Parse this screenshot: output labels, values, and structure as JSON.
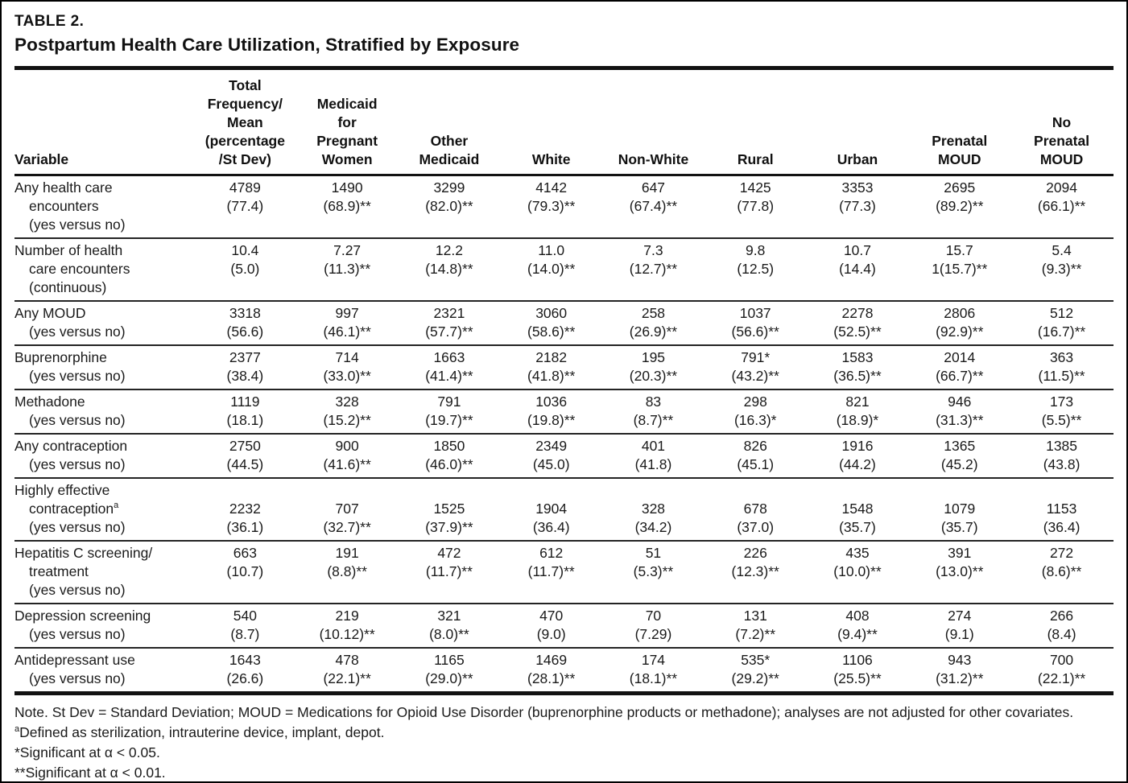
{
  "title": {
    "label": "TABLE 2.",
    "subtitle": "Postpartum Health Care Utilization, Stratified by Exposure"
  },
  "colors": {
    "text": "#1a1a1a",
    "rule": "#121212",
    "row_line": "#242424",
    "background": "#ffffff",
    "border": "#000000"
  },
  "table": {
    "columns": [
      {
        "id": "variable",
        "lines": [
          "Variable"
        ]
      },
      {
        "id": "total",
        "lines": [
          "Total",
          "Frequency/",
          "Mean",
          "(percentage",
          "/St Dev)"
        ]
      },
      {
        "id": "medicaid-pregnant",
        "lines": [
          "Medicaid",
          "for",
          "Pregnant",
          "Women"
        ]
      },
      {
        "id": "other-medicaid",
        "lines": [
          "Other",
          "Medicaid"
        ]
      },
      {
        "id": "white",
        "lines": [
          "White"
        ]
      },
      {
        "id": "non-white",
        "lines": [
          "Non-White"
        ]
      },
      {
        "id": "rural",
        "lines": [
          "Rural"
        ]
      },
      {
        "id": "urban",
        "lines": [
          "Urban"
        ]
      },
      {
        "id": "prenatal-moud",
        "lines": [
          "Prenatal",
          "MOUD"
        ]
      },
      {
        "id": "no-prenatal-moud",
        "lines": [
          "No",
          "Prenatal",
          "MOUD"
        ]
      }
    ],
    "rows": [
      {
        "label_lines": [
          "Any health care",
          "encounters",
          "(yes versus no)"
        ],
        "cells": [
          [
            "4789",
            "(77.4)"
          ],
          [
            "1490",
            "(68.9)**"
          ],
          [
            "3299",
            "(82.0)**"
          ],
          [
            "4142",
            "(79.3)**"
          ],
          [
            "647",
            "(67.4)**"
          ],
          [
            "1425",
            "(77.8)"
          ],
          [
            "3353",
            "(77.3)"
          ],
          [
            "2695",
            "(89.2)**"
          ],
          [
            "2094",
            "(66.1)**"
          ]
        ]
      },
      {
        "label_lines": [
          "Number of health",
          "care encounters",
          "(continuous)"
        ],
        "cells": [
          [
            "10.4",
            "(5.0)"
          ],
          [
            "7.27",
            "(11.3)**"
          ],
          [
            "12.2",
            "(14.8)**"
          ],
          [
            "11.0",
            "(14.0)**"
          ],
          [
            "7.3",
            "(12.7)**"
          ],
          [
            "9.8",
            "(12.5)"
          ],
          [
            "10.7",
            "(14.4)"
          ],
          [
            "15.7",
            "1(15.7)**"
          ],
          [
            "5.4",
            "(9.3)**"
          ]
        ]
      },
      {
        "label_lines": [
          "Any MOUD",
          "(yes versus no)"
        ],
        "cells": [
          [
            "3318",
            "(56.6)"
          ],
          [
            "997",
            "(46.1)**"
          ],
          [
            "2321",
            "(57.7)**"
          ],
          [
            "3060",
            "(58.6)**"
          ],
          [
            "258",
            "(26.9)**"
          ],
          [
            "1037",
            "(56.6)**"
          ],
          [
            "2278",
            "(52.5)**"
          ],
          [
            "2806",
            "(92.9)**"
          ],
          [
            "512",
            "(16.7)**"
          ]
        ]
      },
      {
        "label_lines": [
          "Buprenorphine",
          "(yes versus no)"
        ],
        "cells": [
          [
            "2377",
            "(38.4)"
          ],
          [
            "714",
            "(33.0)**"
          ],
          [
            "1663",
            "(41.4)**"
          ],
          [
            "2182",
            "(41.8)**"
          ],
          [
            "195",
            "(20.3)**"
          ],
          [
            "791*",
            "(43.2)**"
          ],
          [
            "1583",
            "(36.5)**"
          ],
          [
            "2014",
            "(66.7)**"
          ],
          [
            "363",
            "(11.5)**"
          ]
        ]
      },
      {
        "label_lines": [
          "Methadone",
          "(yes versus no)"
        ],
        "cells": [
          [
            "1119",
            "(18.1)"
          ],
          [
            "328",
            "(15.2)**"
          ],
          [
            "791",
            "(19.7)**"
          ],
          [
            "1036",
            "(19.8)**"
          ],
          [
            "83",
            "(8.7)**"
          ],
          [
            "298",
            "(16.3)*"
          ],
          [
            "821",
            "(18.9)*"
          ],
          [
            "946",
            "(31.3)**"
          ],
          [
            "173",
            "(5.5)**"
          ]
        ]
      },
      {
        "label_lines": [
          "Any contraception",
          "(yes versus no)"
        ],
        "cells": [
          [
            "2750",
            "(44.5)"
          ],
          [
            "900",
            "(41.6)**"
          ],
          [
            "1850",
            "(46.0)**"
          ],
          [
            "2349",
            "(45.0)"
          ],
          [
            "401",
            "(41.8)"
          ],
          [
            "826",
            "(45.1)"
          ],
          [
            "1916",
            "(44.2)"
          ],
          [
            "1365",
            "(45.2)"
          ],
          [
            "1385",
            "(43.8)"
          ]
        ]
      },
      {
        "label_lines": [
          "Highly effective",
          "contraception^a",
          "(yes versus no)"
        ],
        "value_offset": 1,
        "cells": [
          [
            "2232",
            "(36.1)"
          ],
          [
            "707",
            "(32.7)**"
          ],
          [
            "1525",
            "(37.9)**"
          ],
          [
            "1904",
            "(36.4)"
          ],
          [
            "328",
            "(34.2)"
          ],
          [
            "678",
            "(37.0)"
          ],
          [
            "1548",
            "(35.7)"
          ],
          [
            "1079",
            "(35.7)"
          ],
          [
            "1153",
            "(36.4)"
          ]
        ]
      },
      {
        "label_lines": [
          "Hepatitis C screening/",
          "treatment",
          "(yes versus no)"
        ],
        "cells": [
          [
            "663",
            "(10.7)"
          ],
          [
            "191",
            "(8.8)**"
          ],
          [
            "472",
            "(11.7)**"
          ],
          [
            "612",
            "(11.7)**"
          ],
          [
            "51",
            "(5.3)**"
          ],
          [
            "226",
            "(12.3)**"
          ],
          [
            "435",
            "(10.0)**"
          ],
          [
            "391",
            "(13.0)**"
          ],
          [
            "272",
            "(8.6)**"
          ]
        ]
      },
      {
        "label_lines": [
          "Depression screening",
          "(yes versus no)"
        ],
        "cells": [
          [
            "540",
            "(8.7)"
          ],
          [
            "219",
            "(10.12)**"
          ],
          [
            "321",
            "(8.0)**"
          ],
          [
            "470",
            "(9.0)"
          ],
          [
            "70",
            "(7.29)"
          ],
          [
            "131",
            "(7.2)**"
          ],
          [
            "408",
            "(9.4)**"
          ],
          [
            "274",
            "(9.1)"
          ],
          [
            "266",
            "(8.4)"
          ]
        ]
      },
      {
        "label_lines": [
          "Antidepressant use",
          "(yes versus no)"
        ],
        "cells": [
          [
            "1643",
            "(26.6)"
          ],
          [
            "478",
            "(22.1)**"
          ],
          [
            "1165",
            "(29.0)**"
          ],
          [
            "1469",
            "(28.1)**"
          ],
          [
            "174",
            "(18.1)**"
          ],
          [
            "535*",
            "(29.2)**"
          ],
          [
            "1106",
            "(25.5)**"
          ],
          [
            "943",
            "(31.2)**"
          ],
          [
            "700",
            "(22.1)**"
          ]
        ]
      }
    ]
  },
  "notes": [
    "Note. St Dev = Standard Deviation; MOUD = Medications for Opioid Use Disorder (buprenorphine products or methadone); analyses are not adjusted for other covariates.",
    "^aDefined as sterilization, intrauterine device, implant, depot.",
    "*Significant at α < 0.05.",
    "**Significant at α < 0.01."
  ]
}
